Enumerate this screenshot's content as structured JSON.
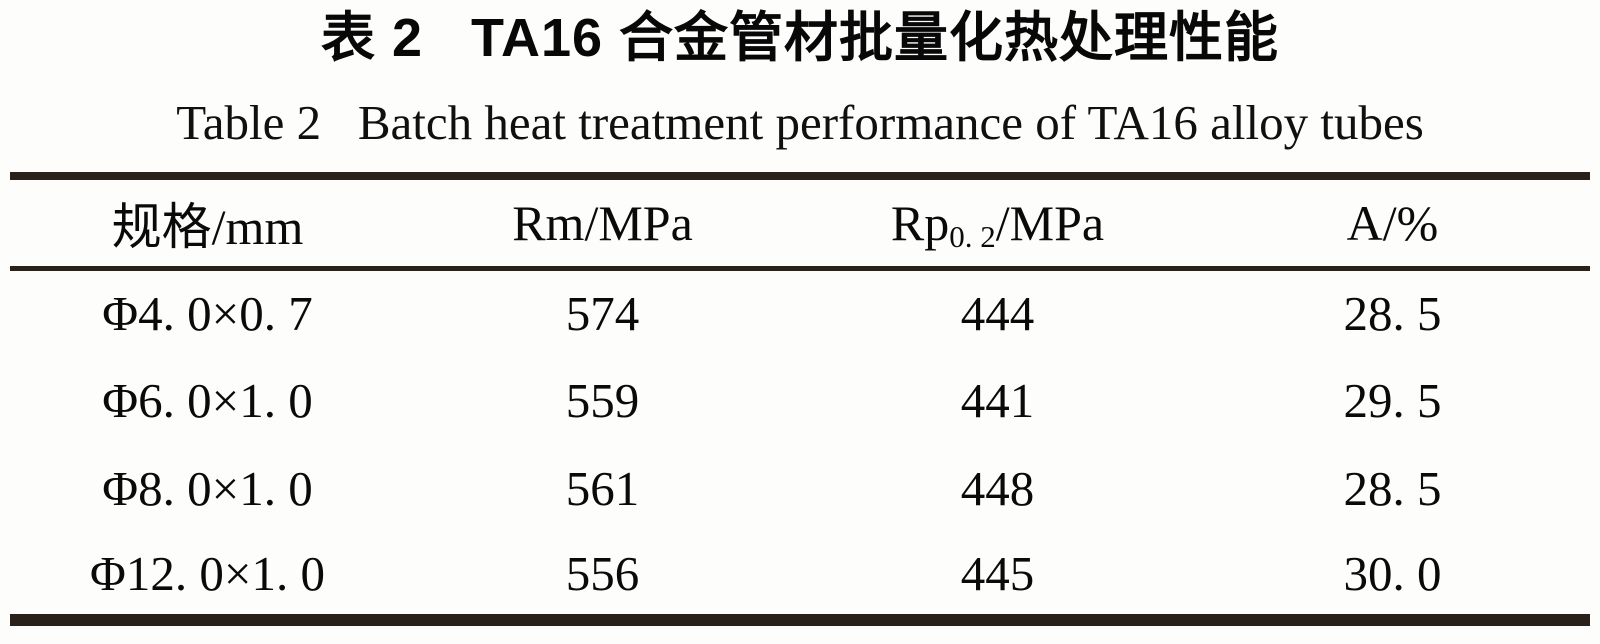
{
  "page": {
    "title_cn": "表 2   TA16 合金管材批量化热处理性能",
    "title_en": "Table 2   Batch heat treatment performance of TA16 alloy tubes"
  },
  "table": {
    "headers": [
      {
        "pre": "规格/mm",
        "sub": "",
        "post": ""
      },
      {
        "pre": "Rm/MPa",
        "sub": "",
        "post": ""
      },
      {
        "pre": "Rp",
        "sub": "0. 2",
        "post": "/MPa"
      },
      {
        "pre": "A/%",
        "sub": "",
        "post": ""
      }
    ],
    "rows": [
      [
        "Φ4. 0×0. 7",
        "574",
        "444",
        "28. 5"
      ],
      [
        "Φ6. 0×1. 0",
        "559",
        "441",
        "29. 5"
      ],
      [
        "Φ8. 0×1. 0",
        "561",
        "448",
        "28. 5"
      ],
      [
        "Φ12. 0×1. 0",
        "556",
        "445",
        "30. 0"
      ]
    ]
  },
  "chart_data": {
    "type": "table",
    "title": "表 2 TA16 合金管材批量化热处理性能",
    "title_en": "Table 2 Batch heat treatment performance of TA16 alloy tubes",
    "columns": [
      "规格/mm",
      "Rm/MPa",
      "Rp0.2/MPa",
      "A/%"
    ],
    "rows": [
      [
        "Φ4.0×0.7",
        574,
        444,
        28.5
      ],
      [
        "Φ6.0×1.0",
        559,
        441,
        29.5
      ],
      [
        "Φ8.0×1.0",
        561,
        448,
        28.5
      ],
      [
        "Φ12.0×1.0",
        556,
        445,
        30.0
      ]
    ],
    "rule_color": "#2b211b",
    "text_color": "#0a0a0a"
  }
}
